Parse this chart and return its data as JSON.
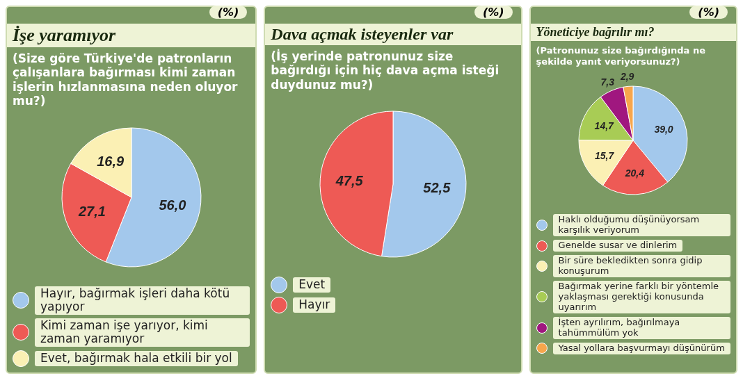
{
  "chart_data": [
    {
      "type": "pie",
      "title": "İşe yaramıyor",
      "subtitle": "(Size göre Türkiye'de patronların çalışanlara bağırması kimi zaman işlerin hızlanmasına neden oluyor mu?)",
      "annotations": [
        "(%)"
      ],
      "categories": [
        "Hayır, bağırmak işleri daha kötü yapıyor",
        "Kimi zaman işe yarıyor, kimi zaman yaramıyor",
        "Evet, bağırmak hala etkili bir yol"
      ],
      "values": [
        56.0,
        27.1,
        16.9
      ],
      "value_labels": [
        "56,0",
        "27,1",
        "16,9"
      ],
      "colors": [
        "#a3c8ec",
        "#ee5a55",
        "#fbf0b4"
      ],
      "legend": "bottom"
    },
    {
      "type": "pie",
      "title": "Dava açmak isteyenler var",
      "subtitle": "(İş yerinde patronunuz size bağırdığı için hiç dava açma isteği duydunuz mu?)",
      "annotations": [
        "(%)"
      ],
      "categories": [
        "Evet",
        "Hayır"
      ],
      "values": [
        52.5,
        47.5
      ],
      "value_labels": [
        "52,5",
        "47,5"
      ],
      "colors": [
        "#a3c8ec",
        "#ee5a55"
      ],
      "legend": "bottom"
    },
    {
      "type": "pie",
      "title": "Yöneticiye bağrılır mı?",
      "subtitle": "(Patronunuz size bağırdığında ne şekilde yanıt veriyorsunuz?)",
      "annotations": [
        "(%)"
      ],
      "categories": [
        "Haklı olduğumu düşünüyorsam karşılık veriyorum",
        "Genelde susar ve dinlerim",
        "Bir süre bekledikten sonra gidip konuşurum",
        "Bağırmak yerine farklı bir yöntemle yaklaşması gerektiği konusunda uyarırım",
        "İşten ayrılırım, bağırılmaya tahümmülüm yok",
        "Yasal yollara başvurmayı düşünürüm"
      ],
      "values": [
        39.0,
        20.4,
        15.7,
        14.7,
        7.3,
        2.9
      ],
      "value_labels": [
        "39,0",
        "20,4",
        "15,7",
        "14,7",
        "7,3",
        "2,9"
      ],
      "colors": [
        "#a3c8ec",
        "#ee5a55",
        "#fbf0b4",
        "#a8cc55",
        "#a0177f",
        "#f7a64c"
      ],
      "legend": "bottom"
    }
  ]
}
